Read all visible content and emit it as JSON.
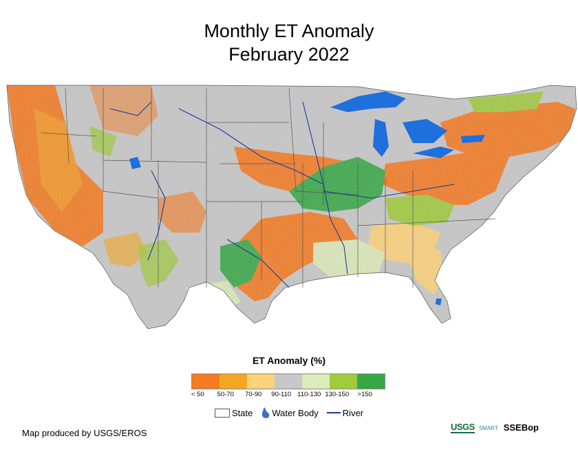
{
  "title": {
    "line1": "Monthly ET Anomaly",
    "line2": "February 2022"
  },
  "legend": {
    "title": "ET Anomaly (%)",
    "classes": [
      {
        "label": "< 50",
        "color": "#f57a21"
      },
      {
        "label": "50-70",
        "color": "#f5a623"
      },
      {
        "label": "70-90",
        "color": "#fdd27a"
      },
      {
        "label": "90-110",
        "color": "#c8c8c8"
      },
      {
        "label": "110-130",
        "color": "#dcebb8"
      },
      {
        "label": "130-150",
        "color": "#9fcb3c"
      },
      {
        "label": ">150",
        "color": "#37a845"
      }
    ]
  },
  "map_legend": {
    "state": "State",
    "water_body": "Water Body",
    "river": "River",
    "water_color": "#1f6fdc",
    "river_color": "#1a3a9c"
  },
  "credit": "Map produced by USGS/EROS",
  "logos": {
    "usgs": "USGS",
    "smart": "SMART",
    "ssebop": "SSEBop"
  }
}
